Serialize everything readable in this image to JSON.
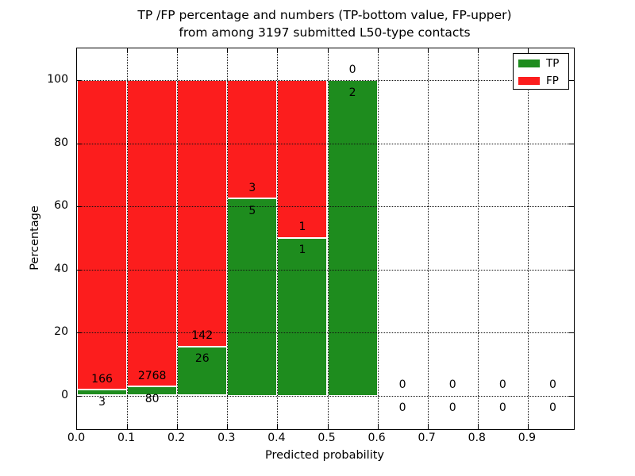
{
  "figure": {
    "title_line1": "TP /FP percentage and numbers (TP-bottom value, FP-upper)",
    "title_line2": "from among 3197 submitted L50-type contacts"
  },
  "chart_data": {
    "type": "bar",
    "stacked": true,
    "normalized_to_percent": true,
    "title": "TP /FP percentage and numbers (TP-bottom value, FP-upper)\nfrom among 3197 submitted L50-type contacts",
    "xlabel": "Predicted probability",
    "ylabel": "Percentage",
    "total_submitted_contacts": 3197,
    "bin_width": 0.1,
    "bin_starts": [
      0.0,
      0.1,
      0.2,
      0.3,
      0.4,
      0.5,
      0.6,
      0.7,
      0.8,
      0.9
    ],
    "categories": [
      "0.0-0.1",
      "0.1-0.2",
      "0.2-0.3",
      "0.3-0.4",
      "0.4-0.5",
      "0.5-0.6",
      "0.6-0.7",
      "0.7-0.8",
      "0.8-0.9",
      "0.9-1.0"
    ],
    "series": [
      {
        "name": "TP",
        "color": "#1e8c1e",
        "position": "bottom",
        "values": [
          3,
          80,
          26,
          5,
          1,
          2,
          0,
          0,
          0,
          0
        ]
      },
      {
        "name": "FP",
        "color": "#fc1d1d",
        "position": "top",
        "values": [
          166,
          2768,
          142,
          3,
          1,
          0,
          0,
          0,
          0,
          0
        ]
      }
    ],
    "tp_percent_of_bin": [
      1.78,
      2.81,
      15.48,
      62.5,
      50.0,
      100.0,
      0,
      0,
      0,
      0
    ],
    "bar_labels_upper_fp": [
      "166",
      "2768",
      "142",
      "3",
      "1",
      "0",
      "0",
      "0",
      "0",
      "0"
    ],
    "bar_labels_lower_tp": [
      "3",
      "80",
      "26",
      "5",
      "1",
      "2",
      "0",
      "0",
      "0",
      "0"
    ],
    "xticks": [
      "0.0",
      "0.1",
      "0.2",
      "0.3",
      "0.4",
      "0.5",
      "0.6",
      "0.7",
      "0.8",
      "0.9"
    ],
    "yticks": [
      "0",
      "20",
      "40",
      "60",
      "80",
      "100"
    ],
    "ytick_values": [
      0,
      20,
      40,
      60,
      80,
      100
    ],
    "xtick_values": [
      0.0,
      0.1,
      0.2,
      0.3,
      0.4,
      0.5,
      0.6,
      0.7,
      0.8,
      0.9
    ],
    "xlim": [
      0.0,
      0.992
    ],
    "ylim": [
      -10.8,
      110.2
    ],
    "grid": "dotted-black",
    "bar_edge_color": "#ffffff",
    "legend": {
      "position": "upper-right",
      "entries": [
        {
          "label": "TP",
          "color": "#1e8c1e"
        },
        {
          "label": "FP",
          "color": "#fc1d1d"
        }
      ]
    }
  }
}
